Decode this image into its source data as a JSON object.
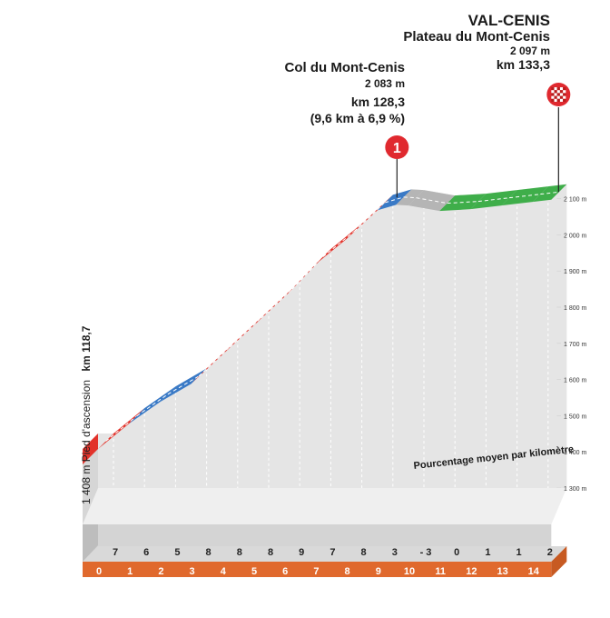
{
  "summit": {
    "name": "Col du Mont-Cenis",
    "altitude": "2 083 m",
    "km": "km 128,3",
    "climb": "(9,6 km à 6,9 %)",
    "marker": "1"
  },
  "finish": {
    "town": "VAL-CENIS",
    "place": "Plateau du Mont-Cenis",
    "altitude": "2 097 m",
    "km": "km 133,3"
  },
  "ascension": {
    "label": "1 408 m  Pied d'ascension",
    "km": "km 118,7"
  },
  "legend": "Pourcentage moyen par kilomètre",
  "colors": {
    "red": "#e2332b",
    "blue": "#3a7ac6",
    "green": "#3fae4a",
    "grey": "#b5b5b5",
    "orange": "#e0692d",
    "fill": "#e5e5e5",
    "base": "#bdbdbd",
    "marker": "#e0292f"
  },
  "chart_data": {
    "type": "area",
    "xlabel": "",
    "ylabel": "",
    "x_ticks": [
      "0",
      "1",
      "2",
      "3",
      "4",
      "5",
      "6",
      "7",
      "8",
      "9",
      "10",
      "11",
      "12",
      "13",
      "14"
    ],
    "y_ticks": [
      "1 300 m",
      "1 400 m",
      "1 500 m",
      "1 600 m",
      "1 700 m",
      "1 800 m",
      "1 900 m",
      "2 000 m",
      "2 100 m"
    ],
    "ylim": [
      1300,
      2100
    ],
    "percentages": [
      "7",
      "6",
      "5",
      "8",
      "8",
      "8",
      "9",
      "7",
      "8",
      "3",
      "- 3",
      "0",
      "1",
      "1",
      "2"
    ],
    "profile_km": [
      0,
      1,
      2,
      3,
      4,
      5,
      6,
      7,
      8,
      9,
      9.6,
      10,
      11,
      12,
      13,
      14,
      14.6
    ],
    "profile_alt": [
      1408,
      1478,
      1538,
      1588,
      1668,
      1748,
      1828,
      1918,
      1988,
      2068,
      2083,
      2081,
      2066,
      2071,
      2081,
      2091,
      2097
    ],
    "segment_colors": [
      "red",
      "blue",
      "blue",
      "red",
      "red",
      "red",
      "red",
      "red",
      "red",
      "blue",
      "grey",
      "grey",
      "green",
      "green",
      "green",
      "green"
    ]
  }
}
